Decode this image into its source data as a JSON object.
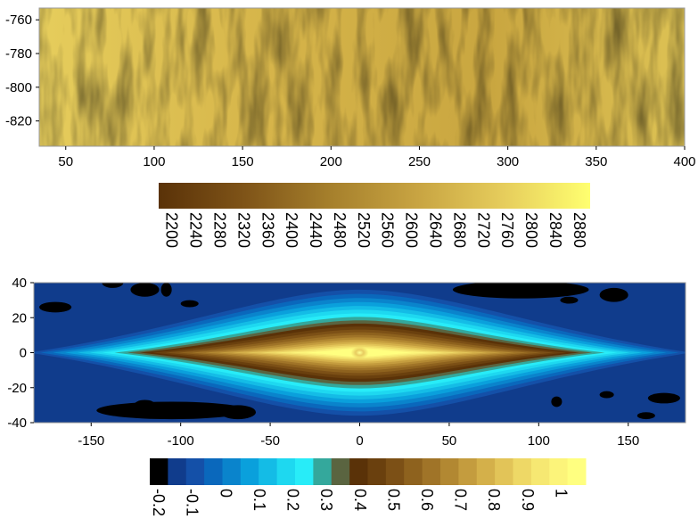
{
  "chart_data": [
    {
      "type": "heatmap",
      "title": "",
      "xlabel": "",
      "ylabel": "",
      "xlim": [
        35,
        400
      ],
      "ylim": [
        -835,
        -753
      ],
      "x_ticks": [
        50,
        100,
        150,
        200,
        250,
        300,
        350,
        400
      ],
      "y_ticks": [
        -760,
        -780,
        -800,
        -820
      ],
      "x_tick_labels": [
        "50",
        "100",
        "150",
        "200",
        "250",
        "300",
        "350",
        "400"
      ],
      "y_tick_labels": [
        "-760",
        "-780",
        "-800",
        "-820"
      ],
      "value_range": [
        2200,
        2900
      ],
      "description_of_values": "noisy texture of values mostly 2450-2750",
      "colormap": [
        "#5a3208",
        "#7f5418",
        "#a6802c",
        "#c8a442",
        "#e6cd5c",
        "#ffff70"
      ],
      "colorbar": {
        "labels": [
          "2200",
          "2240",
          "2280",
          "2320",
          "2360",
          "2400",
          "2440",
          "2480",
          "2520",
          "2560",
          "2600",
          "2640",
          "2680",
          "2720",
          "2760",
          "2800",
          "2840",
          "2880"
        ],
        "orientation": "horizontal",
        "label_rotation": "vertical"
      },
      "grid": false
    },
    {
      "type": "heatmap",
      "title": "",
      "xlabel": "",
      "ylabel": "",
      "xlim": [
        -182,
        182
      ],
      "ylim": [
        -40,
        40
      ],
      "x_ticks": [
        -150,
        -100,
        -50,
        0,
        50,
        100,
        150
      ],
      "y_ticks": [
        40,
        20,
        0,
        -20,
        -40
      ],
      "x_tick_labels": [
        "-150",
        "-100",
        "-50",
        "0",
        "50",
        "100",
        "150"
      ],
      "y_tick_labels": [
        "40",
        "20",
        "0",
        "-20",
        "-40"
      ],
      "value_range": [
        -0.2,
        1.05
      ],
      "peak": {
        "x": 0,
        "y": 0,
        "value": 1.0
      },
      "levels": [
        -0.2,
        -0.15,
        -0.1,
        -0.05,
        0,
        0.05,
        0.1,
        0.15,
        0.2,
        0.25,
        0.3,
        0.35,
        0.4,
        0.45,
        0.5,
        0.55,
        0.6,
        0.65,
        0.7,
        0.75,
        0.8,
        0.85,
        0.9,
        0.95,
        1.0
      ],
      "level_colors": [
        "#000000",
        "#103c8c",
        "#1450a8",
        "#0a68bc",
        "#0a84cc",
        "#0aa0dc",
        "#14bce6",
        "#1ed8f0",
        "#28ecf8",
        "#34a89c",
        "#5a6440",
        "#5a3208",
        "#6a400e",
        "#7c5016",
        "#8e621e",
        "#a07428",
        "#b28832",
        "#c49c3e",
        "#d4b04a",
        "#e2c458",
        "#eed866",
        "#f6e872",
        "#fcf47a",
        "#ffff80"
      ],
      "colorbar": {
        "labels": [
          "-0.2",
          "-0.1",
          "0",
          "0.1",
          "0.2",
          "0.3",
          "0.4",
          "0.5",
          "0.6",
          "0.7",
          "0.8",
          "0.9",
          "1"
        ],
        "orientation": "horizontal",
        "label_rotation": "vertical"
      },
      "grid": false
    }
  ]
}
